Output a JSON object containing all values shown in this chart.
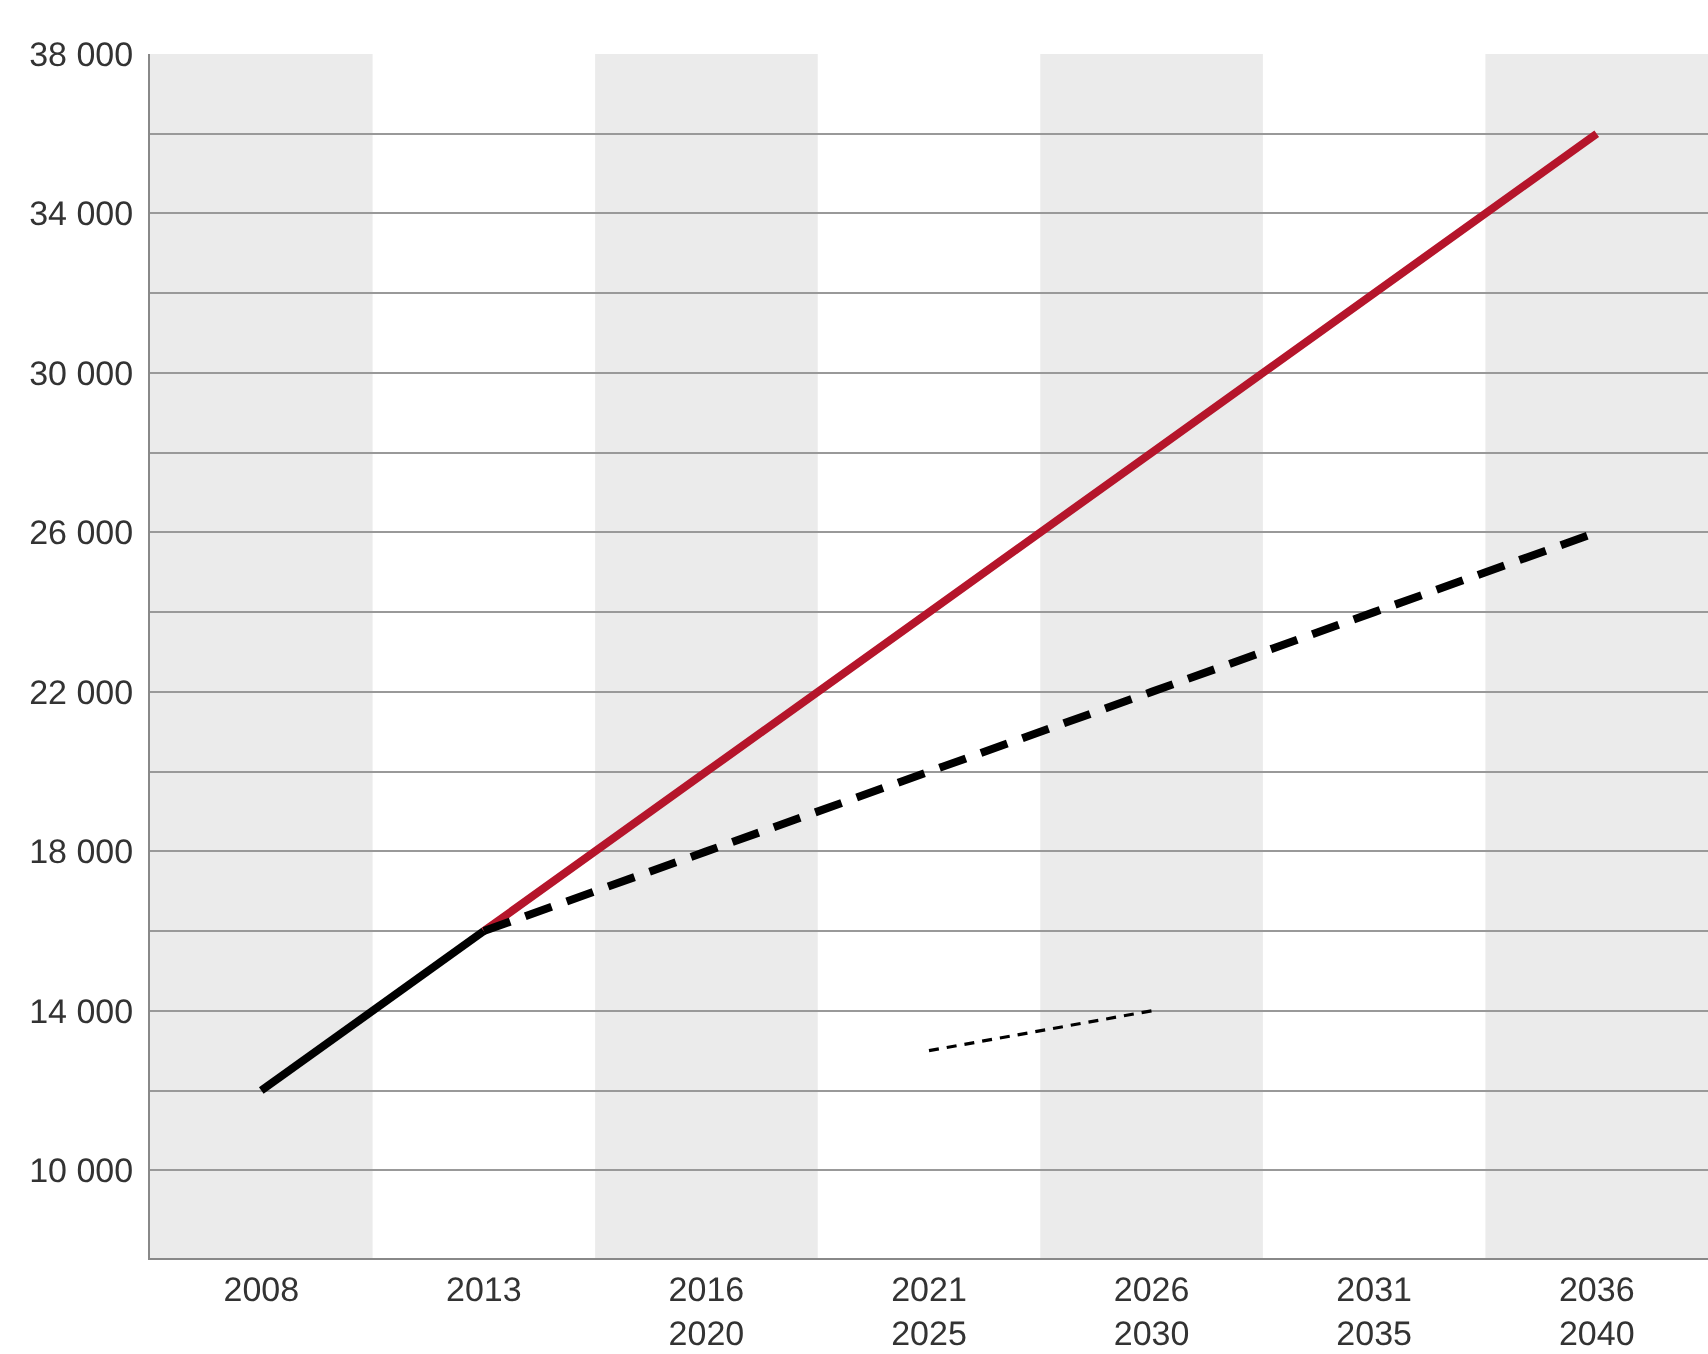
{
  "chart_data": {
    "type": "line",
    "categories": [
      "2008",
      "2013",
      "2016\n2020",
      "2021\n2025",
      "2026\n2030",
      "2031\n2035",
      "2036\n2040"
    ],
    "ylim": [
      7800,
      38000
    ],
    "yticks": [
      {
        "value": 10000,
        "label": "10 000"
      },
      {
        "value": 12000,
        "label": null
      },
      {
        "value": 14000,
        "label": "14 000"
      },
      {
        "value": 16000,
        "label": null
      },
      {
        "value": 18000,
        "label": "18 000"
      },
      {
        "value": 20000,
        "label": null
      },
      {
        "value": 22000,
        "label": "22 000"
      },
      {
        "value": 24000,
        "label": null
      },
      {
        "value": 26000,
        "label": "26 000"
      },
      {
        "value": 28000,
        "label": null
      },
      {
        "value": 30000,
        "label": "30 000"
      },
      {
        "value": 32000,
        "label": null
      },
      {
        "value": 34000,
        "label": "34 000"
      },
      {
        "value": 36000,
        "label": null
      },
      {
        "value": 38000,
        "label": "38 000"
      }
    ],
    "grid": "y",
    "marker": "none",
    "series": [
      {
        "color": "#000000",
        "line_style": "solid",
        "values": [
          12000,
          16000,
          null,
          null,
          null,
          null,
          null
        ]
      },
      {
        "color": "#b5152b",
        "line_style": "solid",
        "values": [
          null,
          16000,
          20000,
          24000,
          28000,
          32000,
          36000
        ]
      },
      {
        "color": "#000000",
        "line_style": "dashed",
        "values": [
          null,
          16000,
          18000,
          20000,
          22000,
          24000,
          26000
        ]
      },
      {
        "color": "#000000",
        "line_style": "dotted",
        "values": [
          null,
          null,
          null,
          13000,
          14000,
          null,
          null
        ]
      }
    ],
    "bands": [
      {
        "axis": "x",
        "from": "2008",
        "to": "2008",
        "color": "#ebebeb"
      },
      {
        "axis": "x",
        "from": "2016\n2020",
        "to": "2016\n2020",
        "color": "#ebebeb"
      },
      {
        "axis": "x",
        "from": "2026\n2030",
        "to": "2026\n2030",
        "color": "#ebebeb"
      },
      {
        "axis": "x",
        "from": "2036\n2040",
        "to": "2036\n2040",
        "color": "#ebebeb"
      }
    ]
  }
}
